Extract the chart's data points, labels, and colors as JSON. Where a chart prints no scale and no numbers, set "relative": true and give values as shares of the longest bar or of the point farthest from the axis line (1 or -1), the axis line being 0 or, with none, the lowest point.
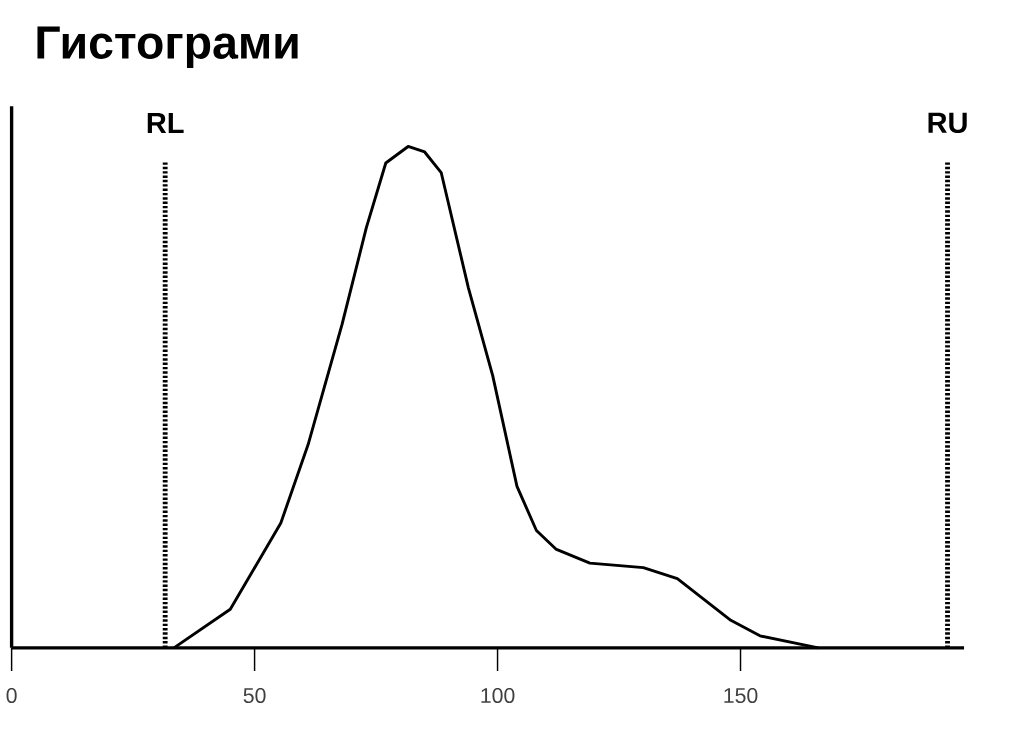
{
  "chart_data": {
    "type": "line",
    "title": "Гистограми",
    "relative": true,
    "color": "#000000",
    "line_style": "solid",
    "marker": "none",
    "x": [
      33.4,
      45,
      55.4,
      61,
      68,
      73,
      77,
      81.6,
      85,
      88.4,
      94,
      99,
      104,
      108,
      112,
      119,
      130,
      137,
      148,
      154,
      166
    ],
    "values": [
      0,
      0.077,
      0.249,
      0.405,
      0.645,
      0.838,
      0.967,
      1.0,
      0.989,
      0.948,
      0.718,
      0.543,
      0.322,
      0.234,
      0.197,
      0.169,
      0.16,
      0.138,
      0.055,
      0.024,
      0
    ],
    "xlim": [
      0,
      196
    ],
    "xticks": [
      0,
      50,
      100,
      150
    ],
    "ref_lines": [
      {
        "axis": "x",
        "value": 31.6,
        "label": "RL",
        "line_style": "dotted",
        "color": "#000000"
      },
      {
        "axis": "x",
        "value": 192.6,
        "label": "RU",
        "line_style": "dotted",
        "color": "#000000"
      }
    ]
  }
}
